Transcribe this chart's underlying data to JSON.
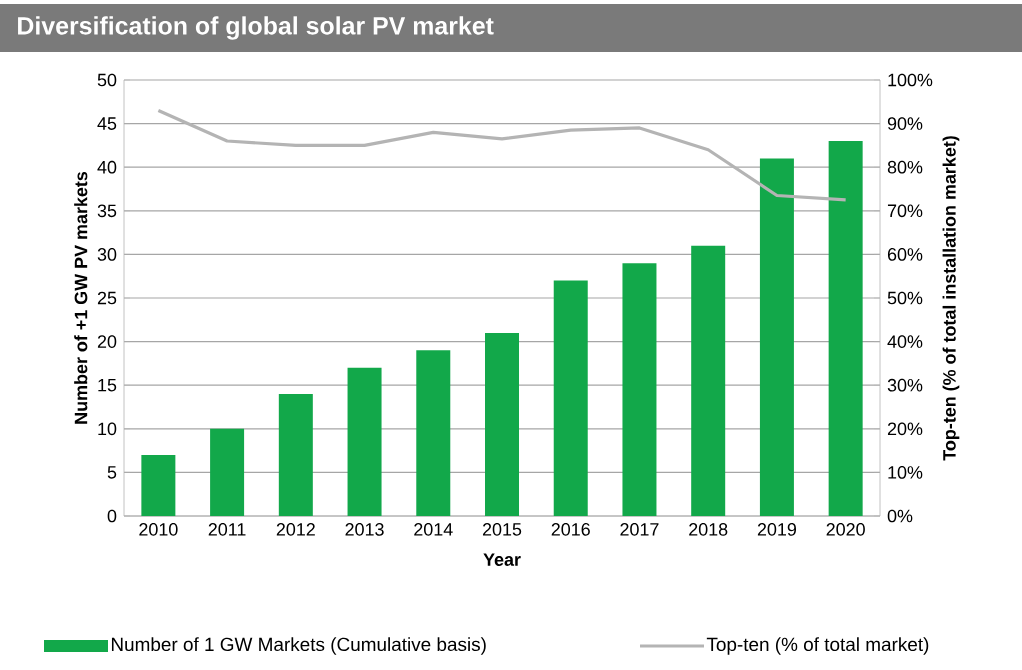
{
  "chart_data": {
    "type": "bar",
    "title": "Diversification of global solar PV market",
    "xlabel": "Year",
    "ylabel": "Number of +1 GW PV markets",
    "y2label": "Top-ten (% of total installation market)",
    "categories": [
      "2010",
      "2011",
      "2012",
      "2013",
      "2014",
      "2015",
      "2016",
      "2017",
      "2018",
      "2019",
      "2020"
    ],
    "series": [
      {
        "name": "Number of 1 GW Markets (Cumulative basis)",
        "type": "bar",
        "color": "#12a84a",
        "values": [
          7,
          10,
          14,
          17,
          19,
          21,
          27,
          29,
          31,
          41,
          43
        ]
      },
      {
        "name": "Top-ten (% of total market)",
        "type": "line",
        "axis": "y2",
        "color": "#b4b4b4",
        "values": [
          93,
          86,
          85,
          85,
          88,
          86.5,
          88.5,
          89,
          84,
          73.5,
          72.5
        ]
      }
    ],
    "ylim": [
      0,
      50
    ],
    "yticks": [
      0,
      5,
      10,
      15,
      20,
      25,
      30,
      35,
      40,
      45,
      50
    ],
    "y2lim": [
      0,
      100
    ],
    "y2ticks": [
      {
        "value": 0,
        "label": "0%"
      },
      {
        "value": 10,
        "label": "10%"
      },
      {
        "value": 20,
        "label": "20%"
      },
      {
        "value": 30,
        "label": "30%"
      },
      {
        "value": 40,
        "label": "40%"
      },
      {
        "value": 50,
        "label": "50%"
      },
      {
        "value": 60,
        "label": "60%"
      },
      {
        "value": 70,
        "label": "70%"
      },
      {
        "value": 80,
        "label": "80%"
      },
      {
        "value": 90,
        "label": "90%"
      },
      {
        "value": 100,
        "label": "100%"
      }
    ],
    "grid": "y",
    "legend": "bottom"
  }
}
